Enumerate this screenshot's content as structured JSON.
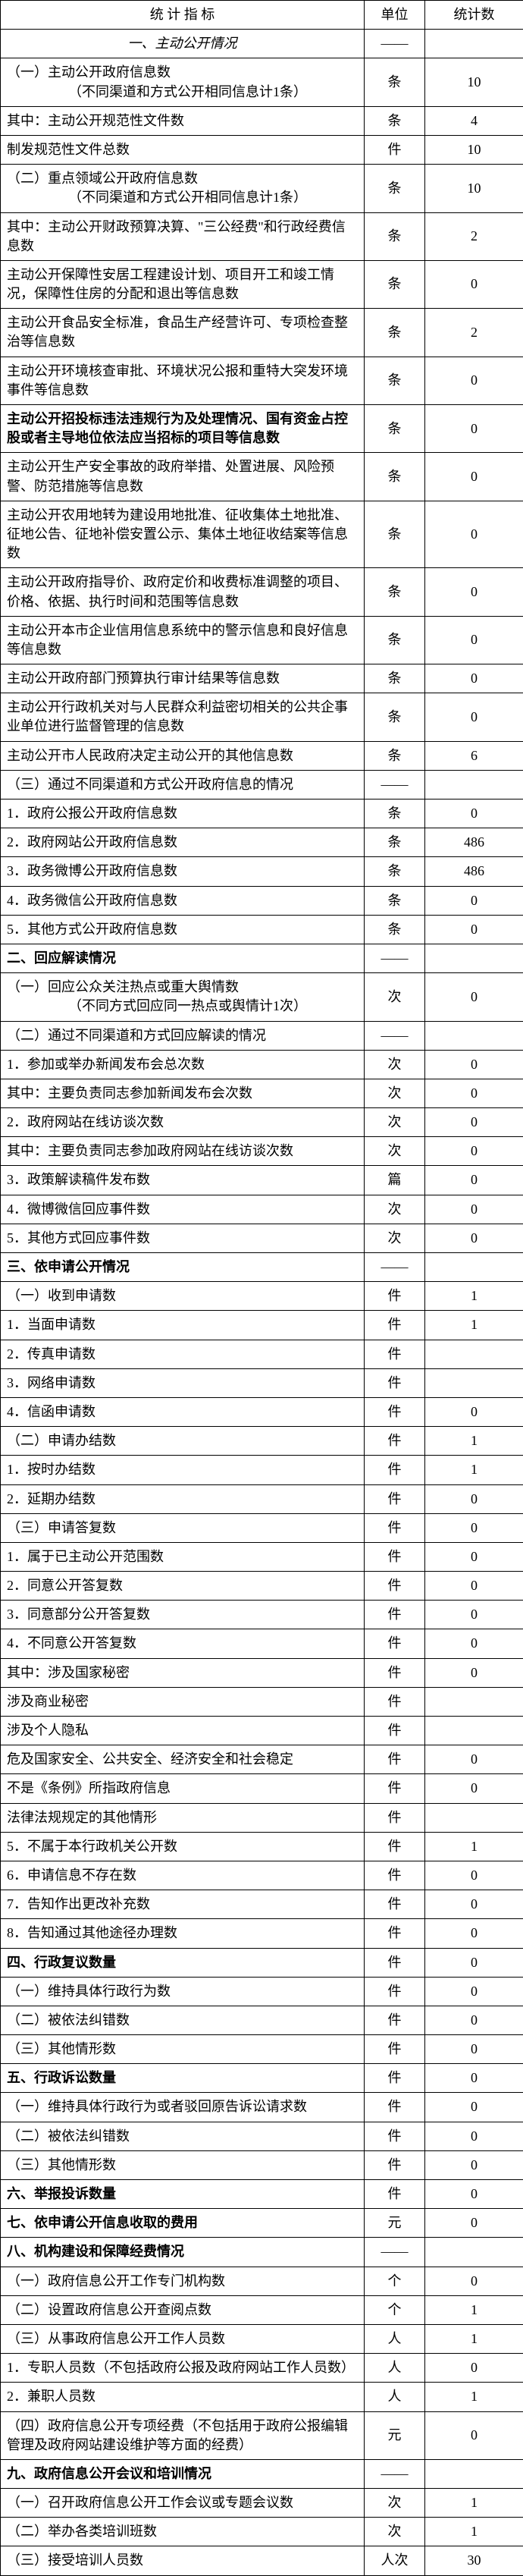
{
  "header": {
    "indicator": "统 计 指 标",
    "unit": "单位",
    "value": "统计数"
  },
  "rows": [
    {
      "label": "一、主动公开情况",
      "unit": "——",
      "value": "",
      "class": "center italic"
    },
    {
      "label": "（一）主动公开政府信息数\n　　　　　（不同渠道和方式公开相同信息计1条）",
      "unit": "条",
      "value": "10"
    },
    {
      "label": "其中：主动公开规范性文件数",
      "unit": "条",
      "value": "4"
    },
    {
      "label": "制发规范性文件总数",
      "unit": "件",
      "value": "10"
    },
    {
      "label": "（二）重点领域公开政府信息数\n　　　　　（不同渠道和方式公开相同信息计1条）",
      "unit": "条",
      "value": "10"
    },
    {
      "label": "其中：主动公开财政预算决算、\"三公经费\"和行政经费信息数",
      "unit": "条",
      "value": "2"
    },
    {
      "label": "主动公开保障性安居工程建设计划、项目开工和竣工情况，保障性住房的分配和退出等信息数",
      "unit": "条",
      "value": "0"
    },
    {
      "label": "主动公开食品安全标准，食品生产经营许可、专项检查整治等信息数",
      "unit": "条",
      "value": "2"
    },
    {
      "label": "主动公开环境核查审批、环境状况公报和重特大突发环境事件等信息数",
      "unit": "条",
      "value": "0"
    },
    {
      "label": "主动公开招投标违法违规行为及处理情况、国有资金占控股或者主导地位依法应当招标的项目等信息数",
      "unit": "条",
      "value": "0",
      "class": "section"
    },
    {
      "label": "主动公开生产安全事故的政府举措、处置进展、风险预警、防范措施等信息数",
      "unit": "条",
      "value": "0"
    },
    {
      "label": "主动公开农用地转为建设用地批准、征收集体土地批准、征地公告、征地补偿安置公示、集体土地征收结案等信息数",
      "unit": "条",
      "value": "0"
    },
    {
      "label": "主动公开政府指导价、政府定价和收费标准调整的项目、价格、依据、执行时间和范围等信息数",
      "unit": "条",
      "value": "0"
    },
    {
      "label": "主动公开本市企业信用信息系统中的警示信息和良好信息等信息数",
      "unit": "条",
      "value": "0"
    },
    {
      "label": "主动公开政府部门预算执行审计结果等信息数",
      "unit": "条",
      "value": "0"
    },
    {
      "label": "主动公开行政机关对与人民群众利益密切相关的公共企事业单位进行监督管理的信息数",
      "unit": "条",
      "value": "0"
    },
    {
      "label": "主动公开市人民政府决定主动公开的其他信息数",
      "unit": "条",
      "value": "6"
    },
    {
      "label": "（三）通过不同渠道和方式公开政府信息的情况",
      "unit": "——",
      "value": ""
    },
    {
      "label": "1．政府公报公开政府信息数",
      "unit": "条",
      "value": "0"
    },
    {
      "label": "2．政府网站公开政府信息数",
      "unit": "条",
      "value": "486"
    },
    {
      "label": "3．政务微博公开政府信息数",
      "unit": "条",
      "value": "486"
    },
    {
      "label": "4．政务微信公开政府信息数",
      "unit": "条",
      "value": "0"
    },
    {
      "label": "5．其他方式公开政府信息数",
      "unit": "条",
      "value": "0"
    },
    {
      "label": "二、回应解读情况",
      "unit": "——",
      "value": "",
      "class": "section"
    },
    {
      "label": "（一）回应公众关注热点或重大舆情数\n　　　　　（不同方式回应同一热点或舆情计1次）",
      "unit": "次",
      "value": "0"
    },
    {
      "label": "（二）通过不同渠道和方式回应解读的情况",
      "unit": "——",
      "value": ""
    },
    {
      "label": "1．参加或举办新闻发布会总次数",
      "unit": "次",
      "value": "0"
    },
    {
      "label": "其中：主要负责同志参加新闻发布会次数",
      "unit": "次",
      "value": "0"
    },
    {
      "label": "2．政府网站在线访谈次数",
      "unit": "次",
      "value": "0"
    },
    {
      "label": "其中：主要负责同志参加政府网站在线访谈次数",
      "unit": "次",
      "value": "0"
    },
    {
      "label": "3．政策解读稿件发布数",
      "unit": "篇",
      "value": "0"
    },
    {
      "label": "4．微博微信回应事件数",
      "unit": "次",
      "value": "0"
    },
    {
      "label": "5．其他方式回应事件数",
      "unit": "次",
      "value": "0"
    },
    {
      "label": "三、依申请公开情况",
      "unit": "——",
      "value": "",
      "class": "section"
    },
    {
      "label": "（一）收到申请数",
      "unit": "件",
      "value": "1"
    },
    {
      "label": "1．当面申请数",
      "unit": "件",
      "value": "1"
    },
    {
      "label": "2．传真申请数",
      "unit": "件",
      "value": ""
    },
    {
      "label": "3．网络申请数",
      "unit": "件",
      "value": ""
    },
    {
      "label": "4．信函申请数",
      "unit": "件",
      "value": "0"
    },
    {
      "label": "（二）申请办结数",
      "unit": "件",
      "value": "1"
    },
    {
      "label": "1．按时办结数",
      "unit": "件",
      "value": "1"
    },
    {
      "label": "2．延期办结数",
      "unit": "件",
      "value": "0"
    },
    {
      "label": "（三）申请答复数",
      "unit": "件",
      "value": "0"
    },
    {
      "label": "1．属于已主动公开范围数",
      "unit": "件",
      "value": "0"
    },
    {
      "label": "2．同意公开答复数",
      "unit": "件",
      "value": "0"
    },
    {
      "label": "3．同意部分公开答复数",
      "unit": "件",
      "value": "0"
    },
    {
      "label": "4．不同意公开答复数",
      "unit": "件",
      "value": "0"
    },
    {
      "label": "其中：涉及国家秘密",
      "unit": "件",
      "value": "0"
    },
    {
      "label": "涉及商业秘密",
      "unit": "件",
      "value": ""
    },
    {
      "label": "涉及个人隐私",
      "unit": "件",
      "value": ""
    },
    {
      "label": "危及国家安全、公共安全、经济安全和社会稳定",
      "unit": "件",
      "value": "0"
    },
    {
      "label": "不是《条例》所指政府信息",
      "unit": "件",
      "value": "0"
    },
    {
      "label": "法律法规规定的其他情形",
      "unit": "件",
      "value": ""
    },
    {
      "label": "5．不属于本行政机关公开数",
      "unit": "件",
      "value": "1"
    },
    {
      "label": "6．申请信息不存在数",
      "unit": "件",
      "value": "0"
    },
    {
      "label": "7．告知作出更改补充数",
      "unit": "件",
      "value": "0"
    },
    {
      "label": "8．告知通过其他途径办理数",
      "unit": "件",
      "value": "0"
    },
    {
      "label": "四、行政复议数量",
      "unit": "件",
      "value": "0",
      "class": "section"
    },
    {
      "label": "（一）维持具体行政行为数",
      "unit": "件",
      "value": "0"
    },
    {
      "label": "（二）被依法纠错数",
      "unit": "件",
      "value": "0"
    },
    {
      "label": "（三）其他情形数",
      "unit": "件",
      "value": "0"
    },
    {
      "label": "五、行政诉讼数量",
      "unit": "件",
      "value": "0",
      "class": "section"
    },
    {
      "label": "（一）维持具体行政行为或者驳回原告诉讼请求数",
      "unit": "件",
      "value": "0"
    },
    {
      "label": "（二）被依法纠错数",
      "unit": "件",
      "value": "0"
    },
    {
      "label": "（三）其他情形数",
      "unit": "件",
      "value": "0"
    },
    {
      "label": "六、举报投诉数量",
      "unit": "件",
      "value": "0",
      "class": "section"
    },
    {
      "label": "七、依申请公开信息收取的费用",
      "unit": "元",
      "value": "0",
      "class": "section"
    },
    {
      "label": "八、机构建设和保障经费情况",
      "unit": "——",
      "value": "",
      "class": "section"
    },
    {
      "label": "（一）政府信息公开工作专门机构数",
      "unit": "个",
      "value": "0"
    },
    {
      "label": "（二）设置政府信息公开查阅点数",
      "unit": "个",
      "value": "1"
    },
    {
      "label": "（三）从事政府信息公开工作人员数",
      "unit": "人",
      "value": "1"
    },
    {
      "label": "1．专职人员数（不包括政府公报及政府网站工作人员数）",
      "unit": "人",
      "value": "0"
    },
    {
      "label": "2．兼职人员数",
      "unit": "人",
      "value": "1"
    },
    {
      "label": "（四）政府信息公开专项经费（不包括用于政府公报编辑管理及政府网站建设维护等方面的经费）",
      "unit": "元",
      "value": "0"
    },
    {
      "label": "九、政府信息公开会议和培训情况",
      "unit": "——",
      "value": "",
      "class": "section"
    },
    {
      "label": "（一）召开政府信息公开工作会议或专题会议数",
      "unit": "次",
      "value": "1"
    },
    {
      "label": "（二）举办各类培训班数",
      "unit": "次",
      "value": "1"
    },
    {
      "label": "（三）接受培训人员数",
      "unit": "人次",
      "value": "30"
    }
  ]
}
